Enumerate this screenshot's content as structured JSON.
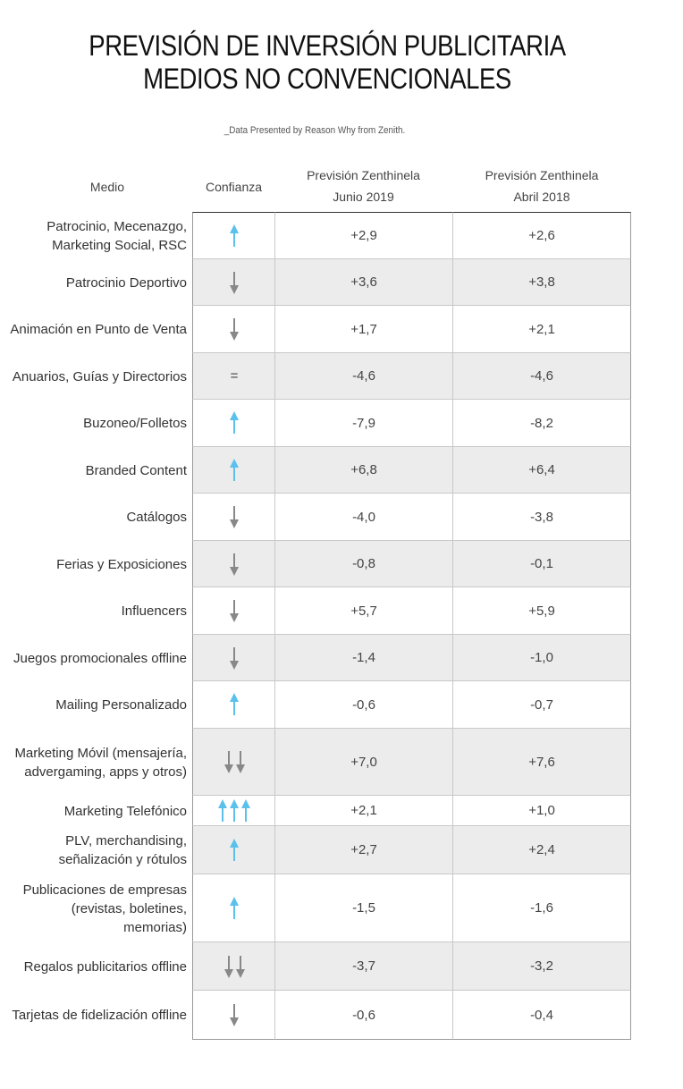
{
  "title_line1": "PREVISIÓN DE INVERSIÓN PUBLICITARIA",
  "title_line2": "MEDIOS NO CONVENCIONALES",
  "subtitle": "_Data Presented by Reason Why from Zenith.",
  "headers": {
    "medio": "Medio",
    "confianza": "Confianza",
    "junio_line1": "Previsión Zenthinela",
    "junio_line2": "Junio 2019",
    "abril_line1": "Previsión Zenthinela",
    "abril_line2": "Abril 2018"
  },
  "colors": {
    "up": "#5bc0eb",
    "down": "#888888"
  },
  "rows": [
    {
      "medio": "Patrocinio, Mecenazgo, Marketing Social, RSC",
      "confianza": "up",
      "count": 1,
      "junio": "+2,9",
      "abril": "+2,6"
    },
    {
      "medio": "Patrocinio Deportivo",
      "confianza": "down",
      "count": 1,
      "junio": "+3,6",
      "abril": "+3,8"
    },
    {
      "medio": "Animación en Punto de Venta",
      "confianza": "down",
      "count": 1,
      "junio": "+1,7",
      "abril": "+2,1"
    },
    {
      "medio": "Anuarios, Guías y Directorios",
      "confianza": "equal",
      "count": 1,
      "symbol": "=",
      "junio": "-4,6",
      "abril": "-4,6"
    },
    {
      "medio": "Buzoneo/Folletos",
      "confianza": "up",
      "count": 1,
      "junio": "-7,9",
      "abril": "-8,2"
    },
    {
      "medio": "Branded Content",
      "confianza": "up",
      "count": 1,
      "junio": "+6,8",
      "abril": "+6,4"
    },
    {
      "medio": "Catálogos",
      "confianza": "down",
      "count": 1,
      "junio": "-4,0",
      "abril": "-3,8"
    },
    {
      "medio": "Ferias y Exposiciones",
      "confianza": "down",
      "count": 1,
      "junio": "-0,8",
      "abril": "-0,1"
    },
    {
      "medio": "Influencers",
      "confianza": "down",
      "count": 1,
      "junio": "+5,7",
      "abril": "+5,9"
    },
    {
      "medio": "Juegos promocionales offline",
      "confianza": "down",
      "count": 1,
      "junio": "-1,4",
      "abril": "-1,0"
    },
    {
      "medio": "Mailing Personalizado",
      "confianza": "up",
      "count": 1,
      "junio": "-0,6",
      "abril": "-0,7"
    },
    {
      "medio": "Marketing Móvil (mensajería, advergaming, apps y otros)",
      "confianza": "down",
      "count": 2,
      "junio": "+7,0",
      "abril": "+7,6"
    },
    {
      "medio": "Marketing Telefónico",
      "confianza": "up",
      "count": 3,
      "junio": "+2,1",
      "abril": "+1,0"
    },
    {
      "medio": "PLV, merchandising, señalización y rótulos",
      "confianza": "up",
      "count": 1,
      "junio": "+2,7",
      "abril": "+2,4"
    },
    {
      "medio": "Publicaciones de empresas (revistas, boletines, memorias)",
      "confianza": "up",
      "count": 1,
      "junio": "-1,5",
      "abril": "-1,6"
    },
    {
      "medio": "Regalos publicitarios offline",
      "confianza": "down",
      "count": 2,
      "junio": "-3,7",
      "abril": "-3,2"
    },
    {
      "medio": "Tarjetas de fidelización offline",
      "confianza": "down",
      "count": 1,
      "junio": "-0,6",
      "abril": "-0,4"
    }
  ]
}
